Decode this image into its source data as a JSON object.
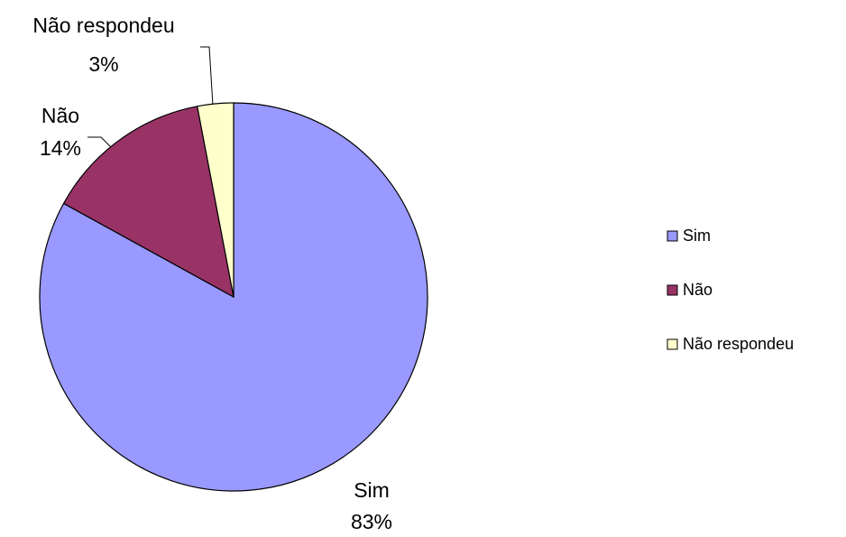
{
  "chart_data": {
    "type": "pie",
    "categories": [
      "Sim",
      "Não",
      "Não respondeu"
    ],
    "values": [
      83,
      14,
      3
    ],
    "value_labels": [
      "83%",
      "14%",
      "3%"
    ],
    "colors": [
      "#9999ff",
      "#993366",
      "#ffffcc"
    ],
    "legend": "right"
  }
}
